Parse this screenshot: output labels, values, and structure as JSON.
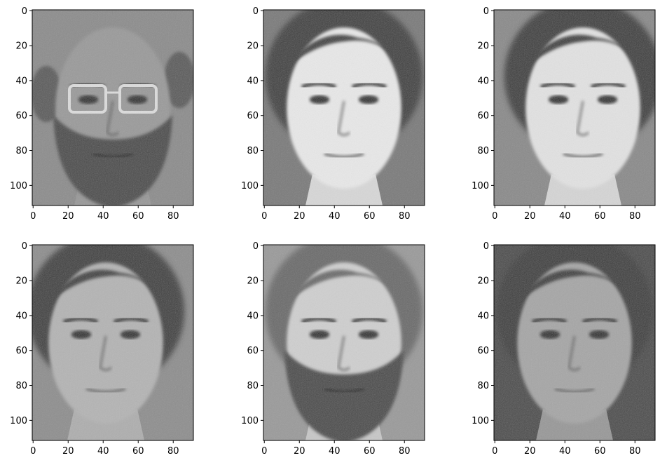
{
  "figure": {
    "layout": {
      "rows": 2,
      "cols": 3
    },
    "colormap": "gray",
    "axes": {
      "x_ticks": [
        0,
        20,
        40,
        60,
        80
      ],
      "y_ticks": [
        0,
        20,
        40,
        60,
        80,
        100
      ],
      "xlim": [
        -0.5,
        91.5
      ],
      "ylim": [
        111.5,
        -0.5
      ]
    },
    "panels": [
      {
        "subject": "bald-man-with-glasses-and-beard",
        "background": "#8c8c8c",
        "skin": "#9a9a9a",
        "hair": "#5a5a5a",
        "beard": true,
        "glasses": true,
        "bald": true,
        "head_turn": 0
      },
      {
        "subject": "young-woman-smiling",
        "background": "#7a7a7a",
        "skin": "#e8e8e8",
        "hair": "#3c3c3c",
        "beard": false,
        "glasses": false,
        "bald": false,
        "head_turn": 0
      },
      {
        "subject": "young-woman-looking-left",
        "background": "#8a8a8a",
        "skin": "#e2e2e2",
        "hair": "#3a3a3a",
        "beard": false,
        "glasses": false,
        "bald": false,
        "head_turn": 6
      },
      {
        "subject": "man-looking-left",
        "background": "#8e8e8e",
        "skin": "#b4b4b4",
        "hair": "#3e3e3e",
        "beard": false,
        "glasses": false,
        "bald": false,
        "head_turn": -5
      },
      {
        "subject": "bearded-man-smiling",
        "background": "#9a9a9a",
        "skin": "#cfcfcf",
        "hair": "#6a6a6a",
        "beard": true,
        "glasses": false,
        "bald": false,
        "head_turn": 0
      },
      {
        "subject": "young-man-dark-background",
        "background": "#4a4a4a",
        "skin": "#a6a6a6",
        "hair": "#3a3a3a",
        "beard": false,
        "glasses": false,
        "bald": false,
        "head_turn": 0
      }
    ]
  }
}
